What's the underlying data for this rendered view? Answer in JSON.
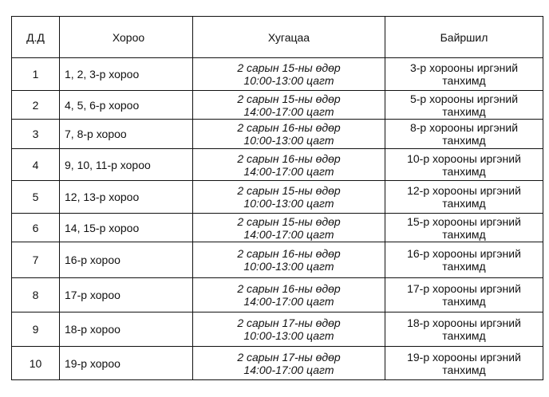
{
  "headers": [
    "Д.Д",
    "Хороо",
    "Хугацаа",
    "Байршил"
  ],
  "rows": [
    {
      "no": "1",
      "khoroo": "1, 2, 3-р хороо",
      "date": "2 сарын 15-ны өдөр",
      "time": "10:00-13:00 цагт",
      "loc1": "3-р хорооны иргэний",
      "loc2": "танхимд"
    },
    {
      "no": "2",
      "khoroo": "4, 5, 6-р хороо",
      "date": "2 сарын 15-ны өдөр",
      "time": "14:00-17:00 цагт",
      "loc1": "5-р хорооны иргэний",
      "loc2": "танхимд"
    },
    {
      "no": "3",
      "khoroo": "7, 8-р хороо",
      "date": "2 сарын 16-ны өдөр",
      "time": "10:00-13:00 цагт",
      "loc1": "8-р хорооны иргэний",
      "loc2": "танхимд"
    },
    {
      "no": "4",
      "khoroo": "9, 10, 11-р хороо",
      "date": "2 сарын 16-ны өдөр",
      "time": "14:00-17:00 цагт",
      "loc1": "10-р хорооны иргэний",
      "loc2": "танхимд"
    },
    {
      "no": "5",
      "khoroo": "12, 13-р хороо",
      "date": "2 сарын 15-ны өдөр",
      "time": "10:00-13:00 цагт",
      "loc1": "12-р хорооны иргэний",
      "loc2": "танхимд"
    },
    {
      "no": "6",
      "khoroo": "14, 15-р хороо",
      "date": "2 сарын 15-ны өдөр",
      "time": "14:00-17:00 цагт",
      "loc1": "15-р хорооны иргэний",
      "loc2": "танхимд"
    },
    {
      "no": "7",
      "khoroo": "16-р хороо",
      "date": "2 сарын 16-ны өдөр",
      "time": "10:00-13:00 цагт",
      "loc1": "16-р хорооны иргэний",
      "loc2": "танхимд"
    },
    {
      "no": "8",
      "khoroo": "17-р хороо",
      "date": "2 сарын 16-ны өдөр",
      "time": "14:00-17:00 цагт",
      "loc1": "17-р хорооны иргэний",
      "loc2": "танхимд"
    },
    {
      "no": "9",
      "khoroo": "18-р хороо",
      "date": "2 сарын 17-ны өдөр",
      "time": "10:00-13:00 цагт",
      "loc1": "18-р хорооны иргэний",
      "loc2": "танхимд"
    },
    {
      "no": "10",
      "khoroo": "19-р хороо",
      "date": "2 сарын 17-ны өдөр",
      "time": "14:00-17:00 цагт",
      "loc1": "19-р хорооны иргэний",
      "loc2": "танхимд"
    }
  ]
}
